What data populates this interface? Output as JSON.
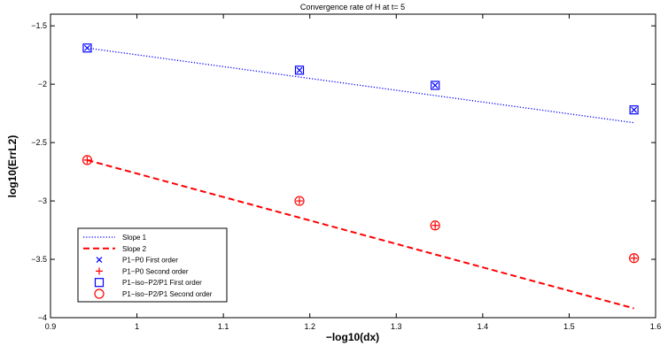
{
  "chart_data": {
    "type": "line",
    "title": "Convergence rate of H at t= 5",
    "xlabel": "−log10(dx)",
    "ylabel": "log10(ErrL2)",
    "xlim": [
      0.9,
      1.6
    ],
    "ylim": [
      -4,
      -1.4
    ],
    "xticks": [
      0.9,
      1,
      1.1,
      1.2,
      1.3,
      1.4,
      1.5,
      1.6
    ],
    "xtick_labels": [
      "0.9",
      "1",
      "1.1",
      "1.2",
      "1.3",
      "1.4",
      "1.5",
      "1.6"
    ],
    "yticks": [
      -4,
      -3.5,
      -3,
      -2.5,
      -2,
      -1.5
    ],
    "ytick_labels": [
      "−4",
      "−3.5",
      "−3",
      "−2.5",
      "−2",
      "−1.5"
    ],
    "grid": false,
    "legend_position": "bottom-left",
    "series": [
      {
        "name": "Slope 1",
        "kind": "line",
        "style": "dotted",
        "color": "#0000ff",
        "x": [
          0.9425,
          1.575
        ],
        "y": [
          -1.69,
          -2.33
        ]
      },
      {
        "name": "Slope 2",
        "kind": "line",
        "style": "dashed",
        "color": "#ff0000",
        "x": [
          0.9425,
          1.575
        ],
        "y": [
          -2.65,
          -3.92
        ]
      },
      {
        "name": "P1−P0 First order",
        "kind": "marker",
        "marker": "x",
        "color": "#0000ff",
        "x": [
          0.9425,
          1.188,
          1.345,
          1.575
        ],
        "y": [
          -1.69,
          -1.88,
          -2.01,
          -2.22
        ]
      },
      {
        "name": "P1−P0 Second order",
        "kind": "marker",
        "marker": "plus",
        "color": "#ff0000",
        "x": [
          0.9425,
          1.188,
          1.345,
          1.575
        ],
        "y": [
          -2.65,
          -3.0,
          -3.21,
          -3.49
        ]
      },
      {
        "name": "P1−iso−P2/P1 First order",
        "kind": "marker",
        "marker": "square",
        "color": "#0000ff",
        "x": [
          0.9425,
          1.188,
          1.345,
          1.575
        ],
        "y": [
          -1.69,
          -1.88,
          -2.01,
          -2.22
        ]
      },
      {
        "name": "P1−iso−P2/P1 Second order",
        "kind": "marker",
        "marker": "circle",
        "color": "#ff0000",
        "x": [
          0.9425,
          1.188,
          1.345,
          1.575
        ],
        "y": [
          -2.65,
          -3.0,
          -3.21,
          -3.49
        ]
      }
    ]
  }
}
